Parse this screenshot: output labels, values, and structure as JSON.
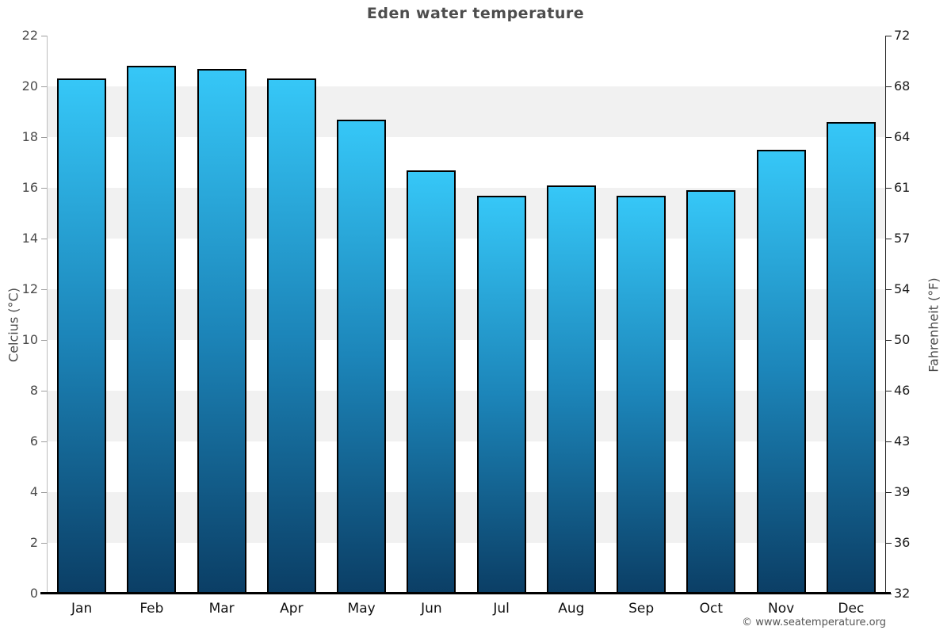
{
  "page": {
    "title": "Eden water temperature",
    "copyright": "© www.seatemperature.org"
  },
  "chart_data": {
    "type": "bar",
    "title": "Eden water temperature",
    "categories": [
      "Jan",
      "Feb",
      "Mar",
      "Apr",
      "May",
      "Jun",
      "Jul",
      "Aug",
      "Sep",
      "Oct",
      "Nov",
      "Dec"
    ],
    "values": [
      20.3,
      20.8,
      20.7,
      20.3,
      18.7,
      16.7,
      15.7,
      16.1,
      15.7,
      15.9,
      17.5,
      18.6
    ],
    "units": "°C",
    "ylabel_left": "Celcius (°C)",
    "ylabel_right": "Fahrenheit (°F)",
    "ylim": [
      0,
      22
    ],
    "yticks_celsius": [
      22,
      20,
      18,
      16,
      14,
      12,
      10,
      8,
      6,
      4,
      2,
      0
    ],
    "yticks_fahrenheit": [
      72,
      68,
      64,
      61,
      57,
      54,
      50,
      46,
      43,
      39,
      36,
      32
    ],
    "grid": "alternating 2°C horizontal bands, no vertical gridlines",
    "legend": "none"
  },
  "colors": {
    "bar_gradient_top": "#36c7f7",
    "bar_gradient_mid": "#1c85b9",
    "bar_gradient_bottom": "#0b3e65",
    "bar_border": "#000000",
    "band_gray": "#f1f1f1",
    "band_white": "#ffffff",
    "baseline": "#000000",
    "title_text": "#4d4d4d",
    "axis_text": "#4a4a4a"
  }
}
